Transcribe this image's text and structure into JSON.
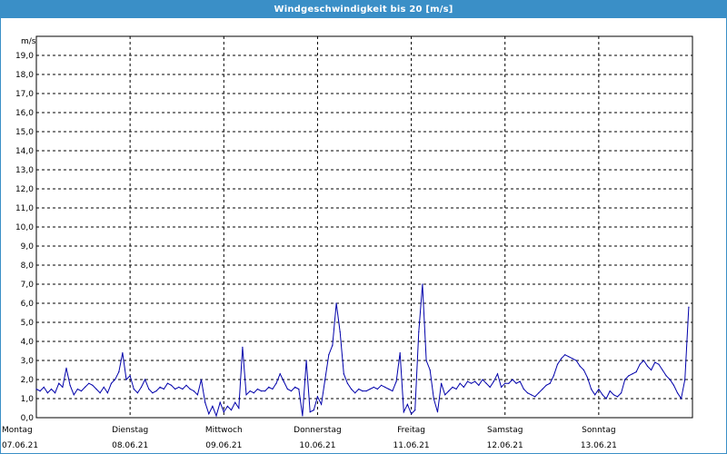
{
  "window": {
    "title": "Windgeschwindigkeit bis 20 [m/s]"
  },
  "chart_data": {
    "type": "line",
    "title": "Windgeschwindigkeit bis 20 [m/s]",
    "ylabel": "m/s",
    "xlabel": "",
    "ylim": [
      0,
      20
    ],
    "xlim": [
      0,
      7
    ],
    "grid": true,
    "y_ticks": [
      "0,0",
      "1,0",
      "2,0",
      "3,0",
      "4,0",
      "5,0",
      "6,0",
      "7,0",
      "8,0",
      "9,0",
      "10,0",
      "11,0",
      "12,0",
      "13,0",
      "14,0",
      "15,0",
      "16,0",
      "17,0",
      "18,0",
      "19,0"
    ],
    "x_ticks": [
      {
        "day": "Montag",
        "date": "07.06.21"
      },
      {
        "day": "Dienstag",
        "date": "08.06.21"
      },
      {
        "day": "Mittwoch",
        "date": "09.06.21"
      },
      {
        "day": "Donnerstag",
        "date": "10.06.21"
      },
      {
        "day": "Freitag",
        "date": "11.06.21"
      },
      {
        "day": "Samstag",
        "date": "12.06.21"
      },
      {
        "day": "Sonntag",
        "date": "13.06.21"
      }
    ],
    "colors": {
      "line": "#0000aa",
      "grid": "#000000",
      "title_bar": "#3a8fc7"
    },
    "series": [
      {
        "points": [
          [
            0.0,
            1.5
          ],
          [
            0.04,
            1.4
          ],
          [
            0.08,
            1.6
          ],
          [
            0.12,
            1.3
          ],
          [
            0.16,
            1.5
          ],
          [
            0.2,
            1.3
          ],
          [
            0.24,
            1.8
          ],
          [
            0.28,
            1.6
          ],
          [
            0.32,
            2.6
          ],
          [
            0.36,
            1.7
          ],
          [
            0.4,
            1.2
          ],
          [
            0.44,
            1.5
          ],
          [
            0.48,
            1.4
          ],
          [
            0.52,
            1.6
          ],
          [
            0.56,
            1.8
          ],
          [
            0.6,
            1.7
          ],
          [
            0.64,
            1.5
          ],
          [
            0.68,
            1.3
          ],
          [
            0.72,
            1.6
          ],
          [
            0.76,
            1.3
          ],
          [
            0.8,
            1.8
          ],
          [
            0.84,
            2.0
          ],
          [
            0.88,
            2.4
          ],
          [
            0.92,
            3.4
          ],
          [
            0.96,
            2.0
          ],
          [
            1.0,
            2.2
          ],
          [
            1.04,
            1.5
          ],
          [
            1.08,
            1.3
          ],
          [
            1.12,
            1.6
          ],
          [
            1.16,
            2.0
          ],
          [
            1.2,
            1.5
          ],
          [
            1.24,
            1.3
          ],
          [
            1.28,
            1.4
          ],
          [
            1.32,
            1.6
          ],
          [
            1.36,
            1.5
          ],
          [
            1.4,
            1.8
          ],
          [
            1.44,
            1.7
          ],
          [
            1.48,
            1.5
          ],
          [
            1.52,
            1.6
          ],
          [
            1.56,
            1.5
          ],
          [
            1.6,
            1.7
          ],
          [
            1.64,
            1.5
          ],
          [
            1.68,
            1.4
          ],
          [
            1.72,
            1.2
          ],
          [
            1.76,
            2.0
          ],
          [
            1.8,
            0.8
          ],
          [
            1.84,
            0.2
          ],
          [
            1.88,
            0.6
          ],
          [
            1.92,
            0.1
          ],
          [
            1.96,
            0.8
          ],
          [
            2.0,
            0.3
          ],
          [
            2.04,
            0.6
          ],
          [
            2.08,
            0.4
          ],
          [
            2.12,
            0.8
          ],
          [
            2.16,
            0.5
          ],
          [
            2.2,
            3.7
          ],
          [
            2.24,
            1.2
          ],
          [
            2.28,
            1.4
          ],
          [
            2.32,
            1.3
          ],
          [
            2.36,
            1.5
          ],
          [
            2.4,
            1.4
          ],
          [
            2.44,
            1.4
          ],
          [
            2.48,
            1.6
          ],
          [
            2.52,
            1.5
          ],
          [
            2.56,
            1.8
          ],
          [
            2.6,
            2.3
          ],
          [
            2.64,
            1.9
          ],
          [
            2.68,
            1.5
          ],
          [
            2.72,
            1.4
          ],
          [
            2.76,
            1.6
          ],
          [
            2.8,
            1.5
          ],
          [
            2.84,
            0.1
          ],
          [
            2.88,
            3.0
          ],
          [
            2.92,
            0.3
          ],
          [
            2.96,
            0.4
          ],
          [
            3.0,
            1.1
          ],
          [
            3.04,
            0.7
          ],
          [
            3.08,
            2.0
          ],
          [
            3.12,
            3.3
          ],
          [
            3.16,
            3.8
          ],
          [
            3.2,
            6.0
          ],
          [
            3.24,
            4.5
          ],
          [
            3.28,
            2.3
          ],
          [
            3.32,
            1.8
          ],
          [
            3.36,
            1.5
          ],
          [
            3.4,
            1.3
          ],
          [
            3.44,
            1.5
          ],
          [
            3.48,
            1.4
          ],
          [
            3.52,
            1.4
          ],
          [
            3.56,
            1.5
          ],
          [
            3.6,
            1.6
          ],
          [
            3.64,
            1.5
          ],
          [
            3.68,
            1.7
          ],
          [
            3.72,
            1.6
          ],
          [
            3.76,
            1.5
          ],
          [
            3.8,
            1.4
          ],
          [
            3.84,
            1.9
          ],
          [
            3.88,
            3.4
          ],
          [
            3.92,
            0.3
          ],
          [
            3.96,
            0.7
          ],
          [
            4.0,
            0.2
          ],
          [
            4.04,
            0.4
          ],
          [
            4.08,
            4.5
          ],
          [
            4.12,
            7.0
          ],
          [
            4.16,
            3.0
          ],
          [
            4.2,
            2.5
          ],
          [
            4.24,
            1.0
          ],
          [
            4.28,
            0.3
          ],
          [
            4.32,
            1.8
          ],
          [
            4.36,
            1.2
          ],
          [
            4.4,
            1.4
          ],
          [
            4.44,
            1.6
          ],
          [
            4.48,
            1.5
          ],
          [
            4.52,
            1.8
          ],
          [
            4.56,
            1.6
          ],
          [
            4.6,
            1.9
          ],
          [
            4.64,
            1.8
          ],
          [
            4.68,
            1.9
          ],
          [
            4.72,
            1.7
          ],
          [
            4.76,
            2.0
          ],
          [
            4.8,
            1.8
          ],
          [
            4.84,
            1.6
          ],
          [
            4.88,
            1.9
          ],
          [
            4.92,
            2.3
          ],
          [
            4.96,
            1.6
          ],
          [
            5.0,
            1.8
          ],
          [
            5.04,
            1.8
          ],
          [
            5.08,
            2.0
          ],
          [
            5.12,
            1.8
          ],
          [
            5.16,
            1.9
          ],
          [
            5.2,
            1.5
          ],
          [
            5.24,
            1.3
          ],
          [
            5.28,
            1.2
          ],
          [
            5.32,
            1.1
          ],
          [
            5.36,
            1.3
          ],
          [
            5.4,
            1.5
          ],
          [
            5.44,
            1.7
          ],
          [
            5.48,
            1.8
          ],
          [
            5.52,
            2.2
          ],
          [
            5.56,
            2.8
          ],
          [
            5.6,
            3.1
          ],
          [
            5.64,
            3.3
          ],
          [
            5.68,
            3.2
          ],
          [
            5.72,
            3.1
          ],
          [
            5.76,
            3.0
          ],
          [
            5.8,
            2.7
          ],
          [
            5.84,
            2.5
          ],
          [
            5.88,
            2.1
          ],
          [
            5.92,
            1.5
          ],
          [
            5.96,
            1.2
          ],
          [
            6.0,
            1.5
          ],
          [
            6.04,
            1.2
          ],
          [
            6.08,
            1.0
          ],
          [
            6.12,
            1.4
          ],
          [
            6.16,
            1.2
          ],
          [
            6.2,
            1.1
          ],
          [
            6.24,
            1.3
          ],
          [
            6.28,
            2.0
          ],
          [
            6.32,
            2.2
          ],
          [
            6.36,
            2.3
          ],
          [
            6.4,
            2.4
          ],
          [
            6.44,
            2.8
          ],
          [
            6.48,
            3.0
          ],
          [
            6.52,
            2.7
          ],
          [
            6.56,
            2.5
          ],
          [
            6.6,
            2.9
          ],
          [
            6.64,
            2.8
          ],
          [
            6.68,
            2.5
          ],
          [
            6.72,
            2.2
          ],
          [
            6.76,
            2.0
          ],
          [
            6.8,
            1.7
          ],
          [
            6.84,
            1.3
          ],
          [
            6.88,
            1.0
          ],
          [
            6.92,
            2.0
          ],
          [
            6.96,
            5.8
          ]
        ]
      }
    ]
  }
}
